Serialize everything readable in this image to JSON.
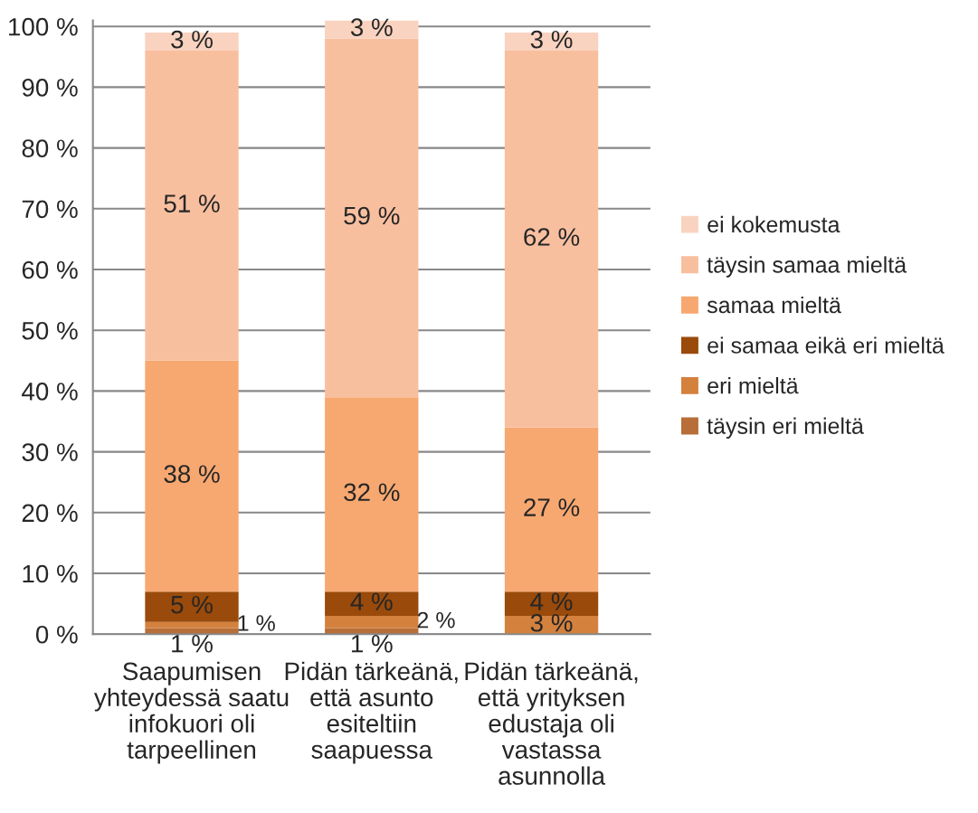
{
  "chart_data": {
    "type": "bar",
    "stacked": true,
    "categories": [
      "Saapumisen\nyhteydessä saatu\ninfokuori oli\ntarpeellinen",
      "Pidän tärkeänä,\nettä asunto\nesiteltiin\nsaapuessa",
      "Pidän tärkeänä,\nettä yrityksen\nedustaja oli\nvastassa\nasunnolla"
    ],
    "series": [
      {
        "name": "täysin eri mieltä",
        "color": "#b86e38",
        "values": [
          1,
          1,
          null
        ],
        "value_labels": [
          "1 %",
          "1 %",
          null
        ]
      },
      {
        "name": "eri mieltä",
        "color": "#d4813e",
        "values": [
          1,
          2,
          3
        ],
        "value_labels": [
          "1 %",
          "2 %",
          "3 %"
        ]
      },
      {
        "name": "ei samaa eikä eri mieltä",
        "color": "#9a4a0a",
        "values": [
          5,
          4,
          4
        ],
        "value_labels": [
          "5 %",
          "4 %",
          "4 %"
        ]
      },
      {
        "name": "samaa mieltä",
        "color": "#f7a870",
        "values": [
          38,
          32,
          27
        ],
        "value_labels": [
          "38 %",
          "32 %",
          "27 %"
        ]
      },
      {
        "name": "täysin samaa mieltä",
        "color": "#f8bf9f",
        "values": [
          51,
          59,
          62
        ],
        "value_labels": [
          "51 %",
          "59 %",
          "62 %"
        ]
      },
      {
        "name": "ei kokemusta",
        "color": "#f9d3c0",
        "values": [
          3,
          3,
          3
        ],
        "value_labels": [
          "3 %",
          "3 %",
          "3 %"
        ]
      }
    ],
    "ylim": [
      0,
      101
    ],
    "yticks": [
      {
        "value": 0,
        "label": "0 %"
      },
      {
        "value": 10,
        "label": "10 %"
      },
      {
        "value": 20,
        "label": "20 %"
      },
      {
        "value": 30,
        "label": "30 %"
      },
      {
        "value": 40,
        "label": "40 %"
      },
      {
        "value": 50,
        "label": "50 %"
      },
      {
        "value": 60,
        "label": "60 %"
      },
      {
        "value": 70,
        "label": "70 %"
      },
      {
        "value": 80,
        "label": "80 %"
      },
      {
        "value": 90,
        "label": "90 %"
      },
      {
        "value": 100,
        "label": "100 %"
      }
    ],
    "grid": "y",
    "legend": "right"
  }
}
